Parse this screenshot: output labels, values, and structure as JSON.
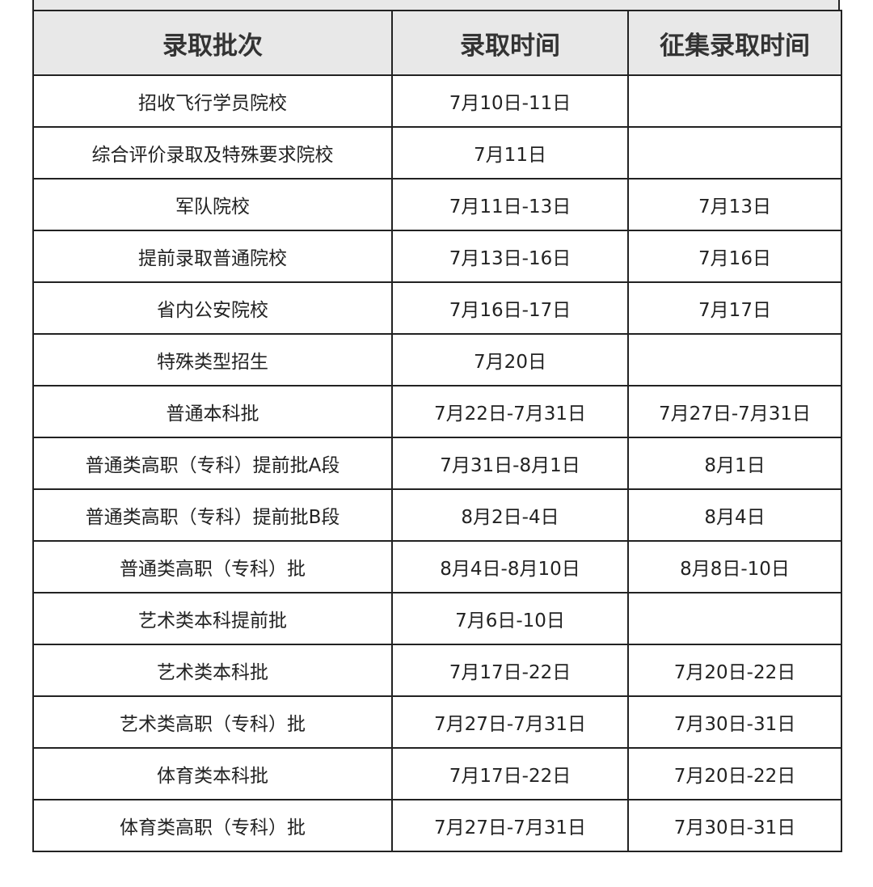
{
  "table": {
    "headers": [
      "录取批次",
      "录取时间",
      "征集录取时间"
    ],
    "rows": [
      [
        "招收飞行学员院校",
        "7月10日-11日",
        ""
      ],
      [
        "综合评价录取及特殊要求院校",
        "7月11日",
        ""
      ],
      [
        "军队院校",
        "7月11日-13日",
        "7月13日"
      ],
      [
        "提前录取普通院校",
        "7月13日-16日",
        "7月16日"
      ],
      [
        "省内公安院校",
        "7月16日-17日",
        "7月17日"
      ],
      [
        "特殊类型招生",
        "7月20日",
        ""
      ],
      [
        "普通本科批",
        "7月22日-7月31日",
        "7月27日-7月31日"
      ],
      [
        "普通类高职（专科）提前批A段",
        "7月31日-8月1日",
        "8月1日"
      ],
      [
        "普通类高职（专科）提前批B段",
        "8月2日-4日",
        "8月4日"
      ],
      [
        "普通类高职（专科）批",
        "8月4日-8月10日",
        "8月8日-10日"
      ],
      [
        "艺术类本科提前批",
        "7月6日-10日",
        ""
      ],
      [
        "艺术类本科批",
        "7月17日-22日",
        "7月20日-22日"
      ],
      [
        "艺术类高职（专科）批",
        "7月27日-7月31日",
        "7月30日-31日"
      ],
      [
        "体育类本科批",
        "7月17日-22日",
        "7月20日-22日"
      ],
      [
        "体育类高职（专科）批",
        "7月27日-7月31日",
        "7月30日-31日"
      ]
    ]
  },
  "colors": {
    "header_bg": "#e8e8e8",
    "border": "#222222"
  }
}
